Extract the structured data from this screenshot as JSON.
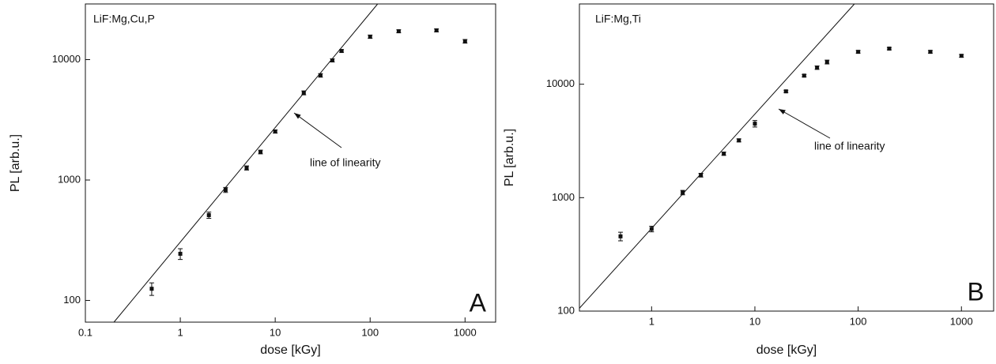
{
  "chart_data": [
    {
      "type": "scatter",
      "title": "LiF:Mg,Cu,P",
      "panel_label": "A",
      "annotation": "line of linearity",
      "x_label": "dose [kGy]",
      "y_label": "PL [arb.u.]",
      "x": [
        0.5,
        1,
        2,
        3,
        5,
        7,
        10,
        20,
        30,
        40,
        50,
        100,
        200,
        500,
        1000
      ],
      "values": [
        125,
        244,
        511,
        828,
        1260,
        1710,
        2530,
        5300,
        7400,
        9850,
        11800,
        15500,
        17200,
        17500,
        14200
      ],
      "errors": [
        15,
        25,
        30,
        40,
        50,
        60,
        80,
        200,
        250,
        300,
        300,
        500,
        500,
        500,
        500
      ],
      "line": {
        "x": [
          0.2,
          120
        ],
        "values": [
          66,
          29000
        ]
      },
      "color": "#111111",
      "log_x": true,
      "log_y": true,
      "xlim": [
        0.1,
        2100
      ],
      "ylim": [
        66,
        29000
      ],
      "xticks": [
        0.1,
        1,
        10,
        100,
        1000
      ],
      "yticks": [
        100,
        1000,
        10000
      ]
    },
    {
      "type": "scatter",
      "title": "LiF:Mg,Ti",
      "panel_label": "B",
      "annotation": "line of linearity",
      "x_label": "dose [kGy]",
      "y_label": "PL [arb.u.]",
      "x": [
        0.5,
        1,
        2,
        3,
        5,
        7,
        10,
        20,
        30,
        40,
        50,
        100,
        200,
        500,
        1000
      ],
      "values": [
        456,
        530,
        1110,
        1580,
        2440,
        3200,
        4490,
        8650,
        11900,
        14000,
        15700,
        19300,
        20600,
        19300,
        17800
      ],
      "errors": [
        40,
        30,
        50,
        60,
        80,
        100,
        300,
        200,
        300,
        500,
        600,
        500,
        500,
        500,
        500
      ],
      "line": {
        "x": [
          0.2,
          92
        ],
        "values": [
          106,
          51000
        ]
      },
      "color": "#111111",
      "log_x": true,
      "log_y": true,
      "xlim": [
        0.2,
        2050
      ],
      "ylim": [
        100,
        51000
      ],
      "xticks": [
        1,
        10,
        100,
        1000
      ],
      "yticks": [
        100,
        1000,
        10000
      ]
    }
  ]
}
